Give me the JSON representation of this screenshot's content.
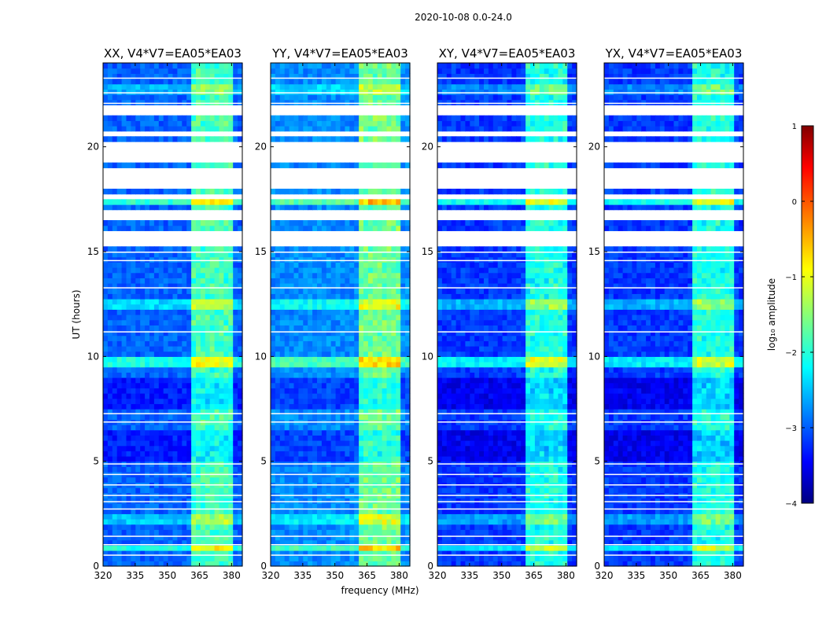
{
  "chart_data": {
    "type": "heatmap",
    "suptitle": "2020-10-08 0.0-24.0",
    "xlabel": "frequency (MHz)",
    "ylabel": "UT (hours)",
    "xlim": [
      320,
      385
    ],
    "ylim": [
      0,
      24
    ],
    "xticks": [
      320,
      335,
      350,
      365,
      380
    ],
    "yticks": [
      0,
      5,
      10,
      15,
      20
    ],
    "panels": [
      {
        "title": "XX, V4*V7=EA05*EA03",
        "base_level": -2.9
      },
      {
        "title": "YY, V4*V7=EA05*EA03",
        "base_level": -2.7
      },
      {
        "title": "XY, V4*V7=EA05*EA03",
        "base_level": -3.1
      },
      {
        "title": "YX, V4*V7=EA05*EA03",
        "base_level": -3.1
      }
    ],
    "rfi_band_mhz": [
      361,
      381
    ],
    "flagged_hours": [
      [
        15.2,
        16.1
      ],
      [
        16.6,
        17.1
      ],
      [
        17.5,
        17.85
      ],
      [
        18.1,
        19.1
      ],
      [
        19.35,
        20.2
      ],
      [
        20.4,
        20.8
      ],
      [
        21.4,
        21.9
      ],
      [
        24.0,
        24.0
      ]
    ],
    "colorbar": {
      "label": "log₁₀ amplitude",
      "range": [
        -4,
        1
      ],
      "ticks": [
        1,
        0,
        -1,
        -2,
        -3,
        -4
      ],
      "tick_labels": [
        "1",
        "0",
        "−1",
        "−2",
        "−3",
        "−4"
      ]
    }
  }
}
